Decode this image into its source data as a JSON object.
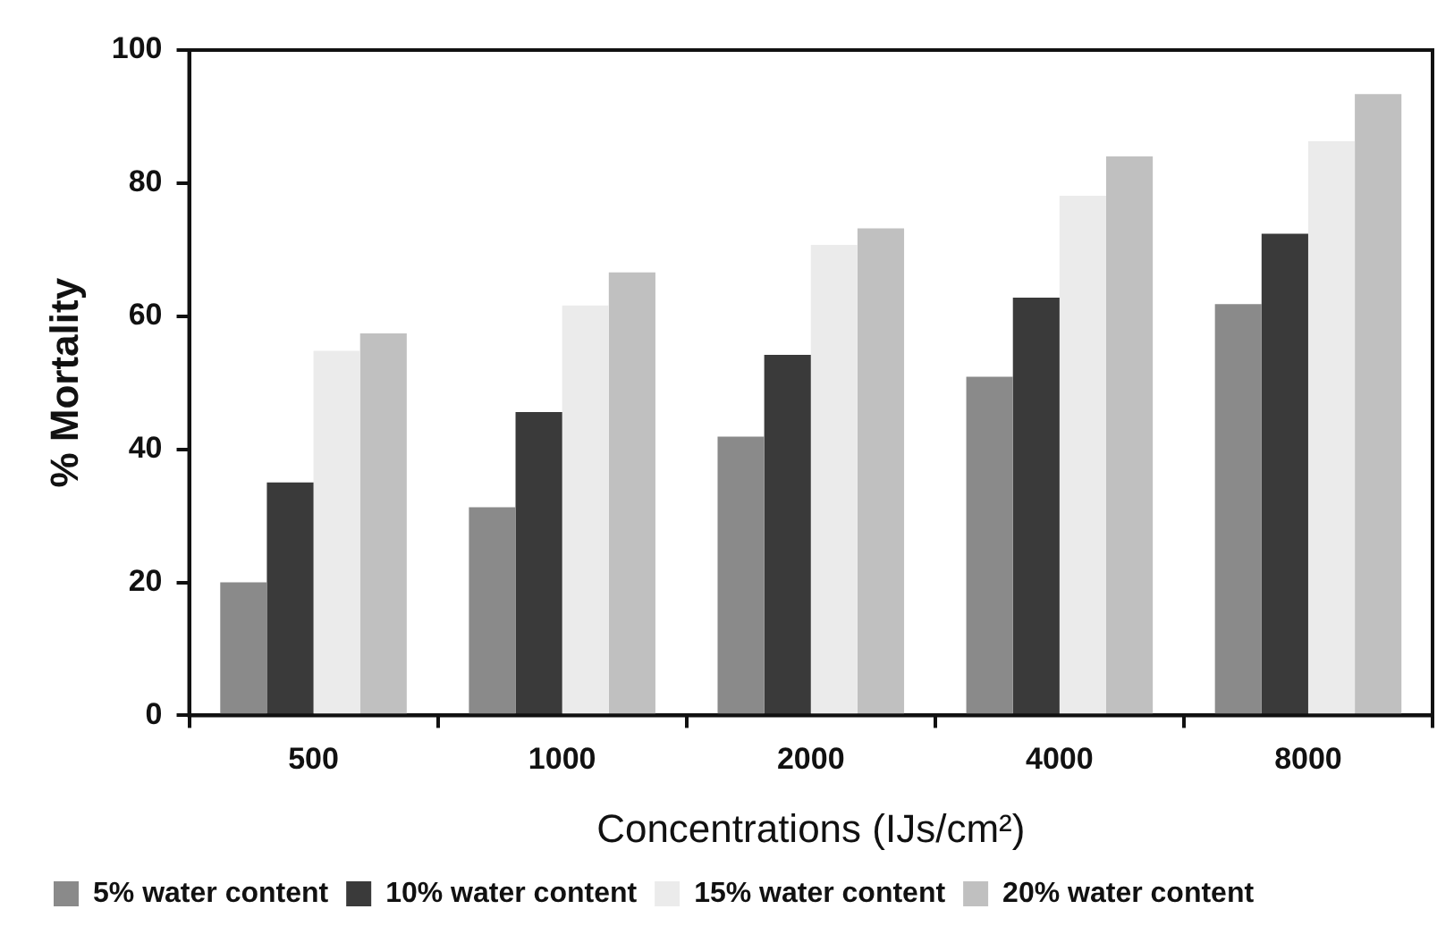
{
  "chart_data": {
    "type": "bar",
    "xlabel": "Concentrations (IJs/cm²)",
    "ylabel": "% Mortality",
    "categories": [
      "500",
      "1000",
      "2000",
      "4000",
      "8000"
    ],
    "series": [
      {
        "name": "5% water content",
        "color": "#8a8a8a",
        "values": [
          20,
          31.3,
          41.9,
          50.9,
          61.8
        ]
      },
      {
        "name": "10% water content",
        "color": "#3a3a3a",
        "values": [
          35,
          45.6,
          54.2,
          62.8,
          72.4
        ]
      },
      {
        "name": "15% water content",
        "color": "#ebebeb",
        "values": [
          54.8,
          61.6,
          70.7,
          78.1,
          86.3
        ]
      },
      {
        "name": "20% water content",
        "color": "#c0c0c0",
        "values": [
          57.4,
          66.6,
          73.2,
          84,
          93.4
        ]
      }
    ],
    "ylim": [
      0,
      100
    ],
    "yticks": [
      0,
      20,
      40,
      60,
      80,
      100
    ],
    "grid": false,
    "legend": "bottom left"
  }
}
